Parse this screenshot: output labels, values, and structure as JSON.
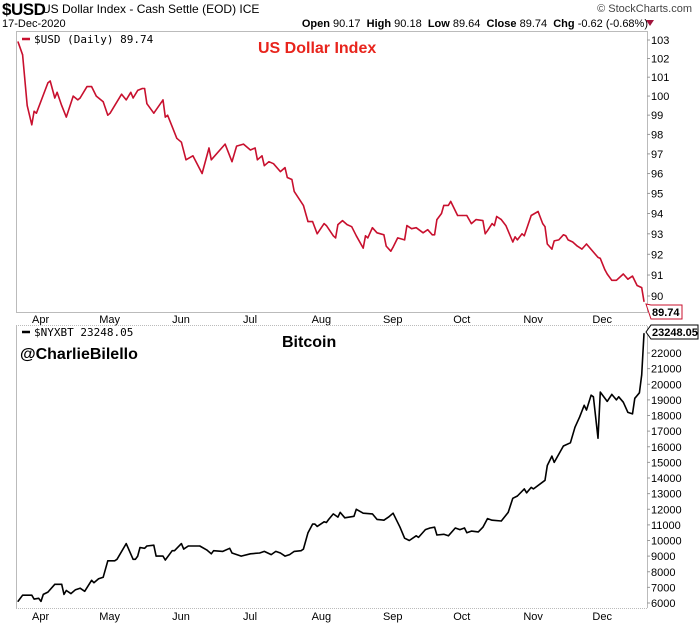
{
  "header": {
    "symbol": "$USD",
    "name": "US Dollar Index - Cash Settle (EOD)",
    "exchange": "ICE",
    "date": "17-Dec-2020",
    "copyright": "© StockCharts.com",
    "open_label": "Open",
    "open": "90.17",
    "high_label": "High",
    "high": "90.18",
    "low_label": "Low",
    "low": "89.64",
    "close_label": "Close",
    "close": "89.74",
    "chg_label": "Chg",
    "chg": "-0.62 (-0.68%)",
    "chg_direction": "down"
  },
  "watermark": "@CharlieBilello",
  "colors": {
    "usd_line": "#c8102e",
    "usd_title": "#e8241c",
    "btc_line": "#000000",
    "down_arrow": "#a0143c"
  },
  "chart_data": [
    {
      "type": "line",
      "title": "US Dollar Index",
      "legend": "$USD (Daily) 89.74",
      "last_value_label": "89.74",
      "y_scale": "log",
      "ylim": [
        89.6,
        103.6
      ],
      "yticks": [
        "103",
        "102",
        "101",
        "100",
        "99",
        "98",
        "97",
        "96",
        "95",
        "94",
        "93",
        "92",
        "91",
        "90"
      ],
      "xticks": [
        "Apr",
        "May",
        "Jun",
        "Jul",
        "Aug",
        "Sep",
        "Oct",
        "Nov",
        "Dec"
      ],
      "xlim": [
        "2020-03-20",
        "2020-12-17"
      ],
      "grid": false,
      "series": [
        {
          "x": [
            "2020-03-20",
            "2020-03-22",
            "2020-03-24",
            "2020-03-26",
            "2020-03-27",
            "2020-03-28",
            "2020-04-02",
            "2020-04-03",
            "2020-04-05",
            "2020-04-06",
            "2020-04-08",
            "2020-04-10",
            "2020-04-13",
            "2020-04-15",
            "2020-04-16",
            "2020-04-19",
            "2020-04-21",
            "2020-04-23",
            "2020-04-26",
            "2020-04-28",
            "2020-04-29",
            "2020-05-01",
            "2020-05-04",
            "2020-05-06",
            "2020-05-08",
            "2020-05-09",
            "2020-05-11",
            "2020-05-13",
            "2020-05-14",
            "2020-05-15",
            "2020-05-18",
            "2020-05-22",
            "2020-05-23",
            "2020-05-24",
            "2020-05-26",
            "2020-05-28",
            "2020-05-30",
            "2020-06-01",
            "2020-06-04",
            "2020-06-08",
            "2020-06-11",
            "2020-06-12",
            "2020-06-18",
            "2020-06-21",
            "2020-06-23",
            "2020-06-26",
            "2020-06-29",
            "2020-07-01",
            "2020-07-02",
            "2020-07-04",
            "2020-07-05",
            "2020-07-07",
            "2020-07-09",
            "2020-07-12",
            "2020-07-14",
            "2020-07-15",
            "2020-07-17",
            "2020-07-18",
            "2020-07-22",
            "2020-07-24",
            "2020-07-26",
            "2020-07-28",
            "2020-07-31",
            "2020-08-01",
            "2020-08-04",
            "2020-08-05",
            "2020-08-06",
            "2020-08-08",
            "2020-08-10",
            "2020-08-12",
            "2020-08-14",
            "2020-08-17",
            "2020-08-18",
            "2020-08-19",
            "2020-08-21",
            "2020-08-23",
            "2020-08-26",
            "2020-08-27",
            "2020-08-29",
            "2020-08-30",
            "2020-09-01",
            "2020-09-04",
            "2020-09-05",
            "2020-09-07",
            "2020-09-09",
            "2020-09-12",
            "2020-09-14",
            "2020-09-16",
            "2020-09-17",
            "2020-09-18",
            "2020-09-20",
            "2020-09-21",
            "2020-09-23",
            "2020-09-24",
            "2020-09-27",
            "2020-09-29",
            "2020-10-01",
            "2020-10-03",
            "2020-10-05",
            "2020-10-08",
            "2020-10-09",
            "2020-10-10",
            "2020-10-12",
            "2020-10-13",
            "2020-10-14",
            "2020-10-16",
            "2020-10-18",
            "2020-10-21",
            "2020-10-22",
            "2020-10-23",
            "2020-10-25",
            "2020-10-26",
            "2020-10-29",
            "2020-11-01",
            "2020-11-03",
            "2020-11-04",
            "2020-11-05",
            "2020-11-07",
            "2020-11-08",
            "2020-11-10",
            "2020-11-12",
            "2020-11-13",
            "2020-11-14",
            "2020-11-16",
            "2020-11-18",
            "2020-11-20",
            "2020-11-22",
            "2020-11-27",
            "2020-11-28",
            "2020-11-30",
            "2020-12-01",
            "2020-12-03",
            "2020-12-05",
            "2020-12-08",
            "2020-12-10",
            "2020-12-12",
            "2020-12-14",
            "2020-12-16",
            "2020-12-17"
          ],
          "y": [
            102.9,
            102.2,
            99.5,
            98.5,
            99.2,
            99.1,
            100.7,
            100.8,
            99.9,
            100.2,
            99.5,
            98.9,
            100.0,
            99.8,
            99.9,
            100.5,
            100.5,
            100.0,
            99.7,
            99.0,
            99.1,
            99.5,
            100.1,
            99.8,
            100.2,
            99.9,
            100.3,
            100.4,
            100.4,
            99.6,
            99.1,
            99.8,
            98.9,
            99.0,
            98.4,
            97.8,
            97.6,
            96.7,
            96.9,
            96.0,
            97.3,
            96.7,
            97.5,
            96.6,
            97.4,
            97.5,
            97.2,
            97.3,
            96.7,
            96.9,
            96.4,
            96.6,
            96.5,
            96.1,
            96.3,
            95.8,
            95.7,
            95.1,
            94.4,
            93.6,
            93.6,
            93.0,
            93.5,
            93.4,
            92.9,
            92.8,
            93.45,
            93.65,
            93.45,
            93.35,
            92.9,
            92.3,
            92.9,
            92.8,
            93.3,
            93.05,
            92.95,
            92.4,
            92.15,
            92.35,
            92.8,
            92.7,
            93.4,
            93.25,
            93.3,
            93.05,
            93.2,
            92.95,
            92.95,
            93.7,
            94.0,
            94.4,
            94.4,
            94.6,
            93.9,
            93.9,
            93.9,
            93.5,
            93.7,
            93.65,
            93.0,
            93.15,
            93.5,
            93.4,
            93.85,
            93.7,
            93.4,
            92.6,
            92.85,
            92.7,
            93.0,
            92.9,
            93.9,
            94.1,
            93.5,
            93.35,
            92.5,
            92.25,
            92.65,
            92.7,
            92.95,
            92.9,
            92.7,
            92.6,
            92.4,
            92.25,
            92.5,
            91.85,
            91.8,
            91.25,
            91.05,
            90.75,
            90.75,
            91.05,
            90.8,
            90.95,
            90.5,
            90.4,
            89.74
          ]
        }
      ]
    },
    {
      "type": "line",
      "title": "Bitcoin",
      "legend": "$NYXBT 23248.05",
      "last_value_label": "23248.05",
      "ylim": [
        5700,
        23600
      ],
      "yticks": [
        "22000",
        "21000",
        "20000",
        "19000",
        "18000",
        "17000",
        "16000",
        "15000",
        "14000",
        "13000",
        "12000",
        "11000",
        "10000",
        "9000",
        "8000",
        "7000",
        "6000"
      ],
      "xticks": [
        "Apr",
        "May",
        "Jun",
        "Jul",
        "Aug",
        "Sep",
        "Oct",
        "Nov",
        "Dec"
      ],
      "xlim": [
        "2020-03-20",
        "2020-12-17"
      ],
      "grid": false,
      "series": [
        {
          "x": [
            "2020-03-20",
            "2020-03-22",
            "2020-03-26",
            "2020-03-27",
            "2020-03-29",
            "2020-03-30",
            "2020-03-31",
            "2020-04-02",
            "2020-04-05",
            "2020-04-08",
            "2020-04-09",
            "2020-04-10",
            "2020-04-12",
            "2020-04-14",
            "2020-04-16",
            "2020-04-18",
            "2020-04-21",
            "2020-04-22",
            "2020-04-24",
            "2020-04-26",
            "2020-04-28",
            "2020-05-01",
            "2020-05-02",
            "2020-05-06",
            "2020-05-09",
            "2020-05-10",
            "2020-05-11",
            "2020-05-12",
            "2020-05-14",
            "2020-05-15",
            "2020-05-18",
            "2020-05-19",
            "2020-05-22",
            "2020-05-23",
            "2020-05-26",
            "2020-05-27",
            "2020-05-30",
            "2020-05-31",
            "2020-06-02",
            "2020-06-07",
            "2020-06-10",
            "2020-06-12",
            "2020-06-13",
            "2020-06-17",
            "2020-06-20",
            "2020-06-21",
            "2020-06-25",
            "2020-06-29",
            "2020-07-03",
            "2020-07-05",
            "2020-07-08",
            "2020-07-10",
            "2020-07-12",
            "2020-07-14",
            "2020-07-16",
            "2020-07-18",
            "2020-07-21",
            "2020-07-22",
            "2020-07-24",
            "2020-07-26",
            "2020-07-27",
            "2020-07-28",
            "2020-07-31",
            "2020-08-01",
            "2020-08-02",
            "2020-08-04",
            "2020-08-06",
            "2020-08-07",
            "2020-08-09",
            "2020-08-13",
            "2020-08-14",
            "2020-08-17",
            "2020-08-21",
            "2020-08-23",
            "2020-08-26",
            "2020-08-28",
            "2020-08-30",
            "2020-09-02",
            "2020-09-04",
            "2020-09-06",
            "2020-09-09",
            "2020-09-10",
            "2020-09-13",
            "2020-09-15",
            "2020-09-17",
            "2020-09-18",
            "2020-09-21",
            "2020-09-23",
            "2020-09-26",
            "2020-09-28",
            "2020-09-30",
            "2020-10-01",
            "2020-10-03",
            "2020-10-06",
            "2020-10-08",
            "2020-10-10",
            "2020-10-12",
            "2020-10-16",
            "2020-10-19",
            "2020-10-21",
            "2020-10-23",
            "2020-10-26",
            "2020-10-27",
            "2020-10-29",
            "2020-10-30",
            "2020-11-04",
            "2020-11-05",
            "2020-11-07",
            "2020-11-08",
            "2020-11-12",
            "2020-11-15",
            "2020-11-17",
            "2020-11-19",
            "2020-11-21",
            "2020-11-22",
            "2020-11-24",
            "2020-11-25",
            "2020-11-27",
            "2020-11-28",
            "2020-12-01",
            "2020-12-03",
            "2020-12-05",
            "2020-12-06",
            "2020-12-08",
            "2020-12-10",
            "2020-12-12",
            "2020-12-13",
            "2020-12-15",
            "2020-12-16",
            "2020-12-17"
          ],
          "y": [
            6100,
            6500,
            6500,
            6250,
            6300,
            6100,
            6550,
            6700,
            7200,
            7200,
            6550,
            6800,
            6600,
            6850,
            6950,
            6750,
            7450,
            7300,
            7550,
            7650,
            8700,
            8700,
            8800,
            9800,
            8800,
            8800,
            9000,
            9550,
            9500,
            9650,
            9700,
            9000,
            9000,
            8750,
            9350,
            9350,
            9800,
            9450,
            9650,
            9650,
            9400,
            9150,
            9350,
            9300,
            9500,
            9200,
            9000,
            9150,
            9200,
            9300,
            9100,
            9300,
            9200,
            9000,
            9100,
            9300,
            9350,
            9450,
            10500,
            11050,
            11050,
            10900,
            11200,
            11150,
            11350,
            11700,
            11500,
            11800,
            11450,
            11550,
            12000,
            11750,
            11700,
            11350,
            11300,
            11500,
            11750,
            10850,
            10150,
            10000,
            10300,
            10200,
            10700,
            10800,
            10850,
            10350,
            10400,
            10300,
            10800,
            10700,
            10800,
            10500,
            10600,
            10550,
            10850,
            11400,
            11300,
            11250,
            11800,
            12700,
            12850,
            13300,
            13050,
            13400,
            13300,
            13850,
            14800,
            15400,
            15000,
            16050,
            16250,
            17250,
            17900,
            18650,
            18350,
            19300,
            19200,
            16550,
            19500,
            18900,
            19350,
            19000,
            19200,
            18850,
            18200,
            18100,
            19100,
            19450,
            20600,
            23248.05
          ]
        }
      ]
    }
  ]
}
